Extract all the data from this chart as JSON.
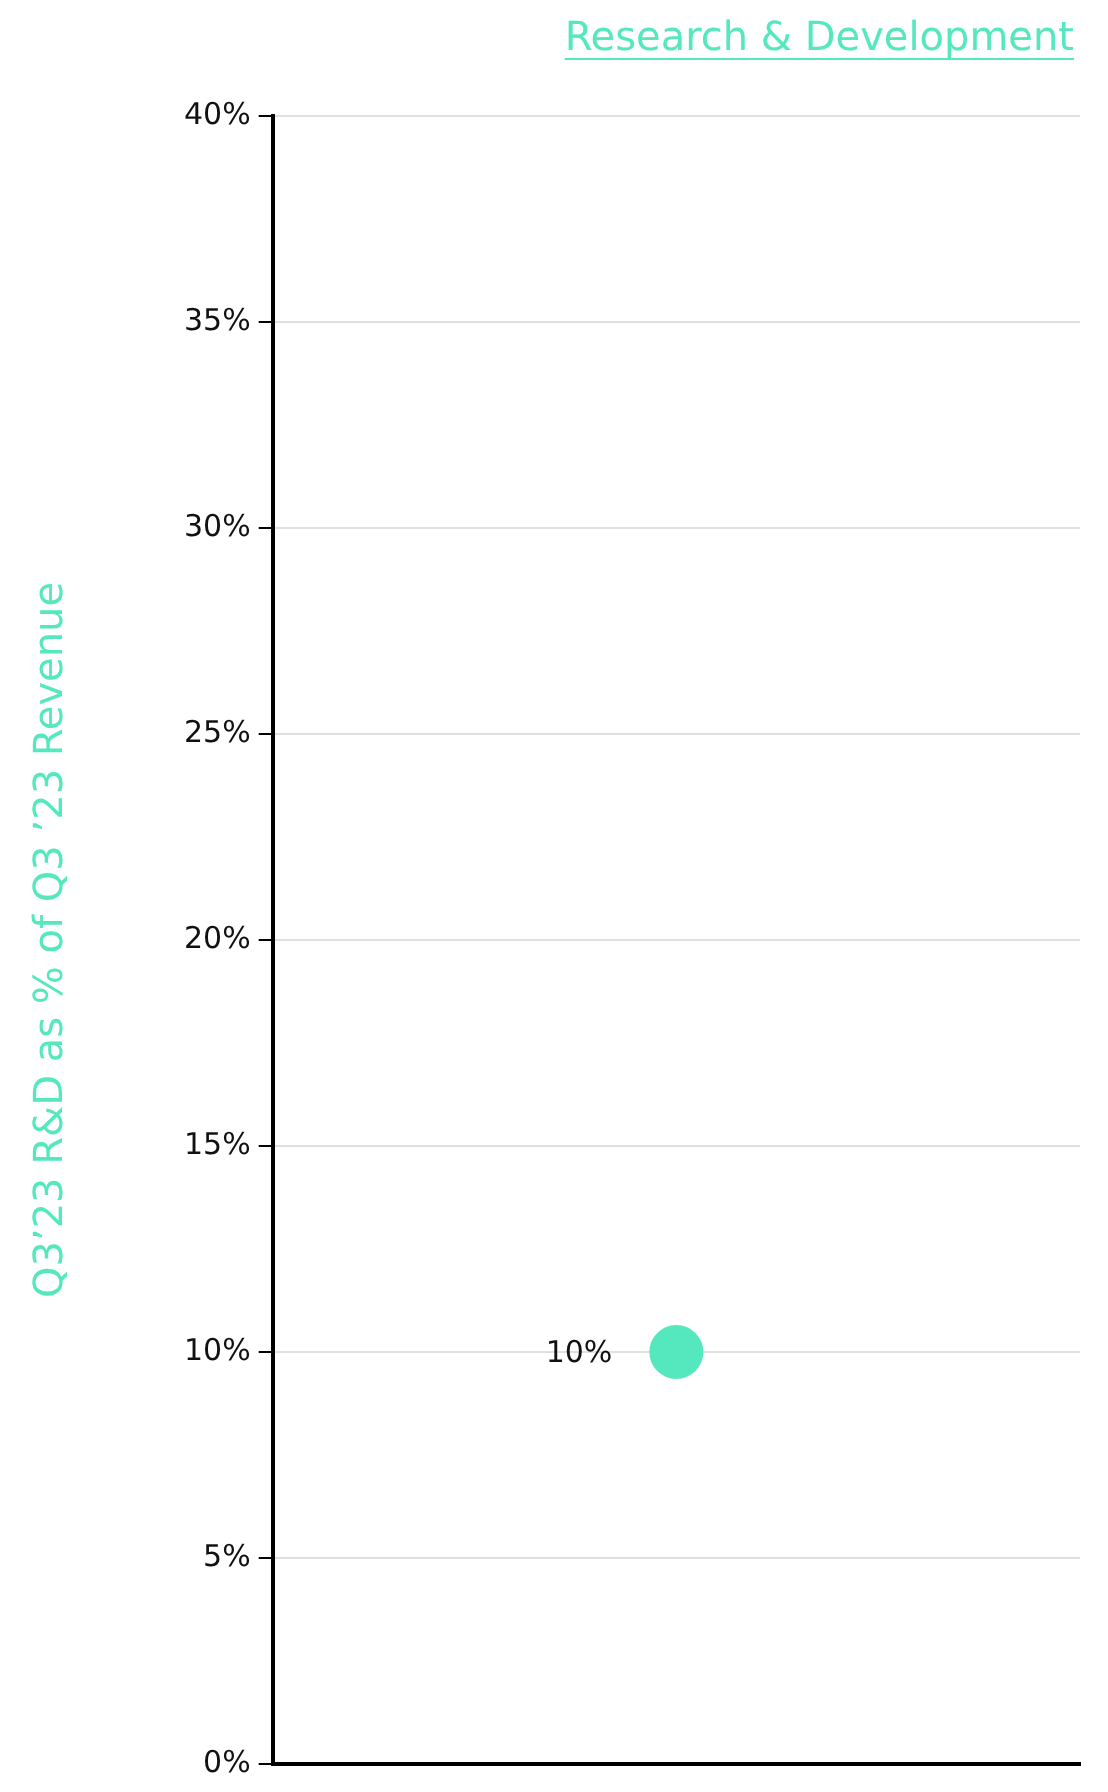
{
  "chart_data": {
    "type": "scatter",
    "title": "Research & Development",
    "ylabel": "Q3’23 R&D as % of Q3 ’23 Revenue",
    "categories": [
      null
    ],
    "series": [
      {
        "color": "#55e8be",
        "values": [
          10
        ],
        "value_labels": [
          "10%"
        ]
      }
    ],
    "ylim": [
      0,
      40
    ],
    "yticks": [
      {
        "value": 0,
        "label": "0%"
      },
      {
        "value": 5,
        "label": "5%"
      },
      {
        "value": 10,
        "label": "10%"
      },
      {
        "value": 15,
        "label": "15%"
      },
      {
        "value": 20,
        "label": "20%"
      },
      {
        "value": 25,
        "label": "25%"
      },
      {
        "value": 30,
        "label": "30%"
      },
      {
        "value": 35,
        "label": "35%"
      },
      {
        "value": 40,
        "label": "40%"
      }
    ],
    "grid": "y",
    "legend": false,
    "marker": "circle"
  }
}
